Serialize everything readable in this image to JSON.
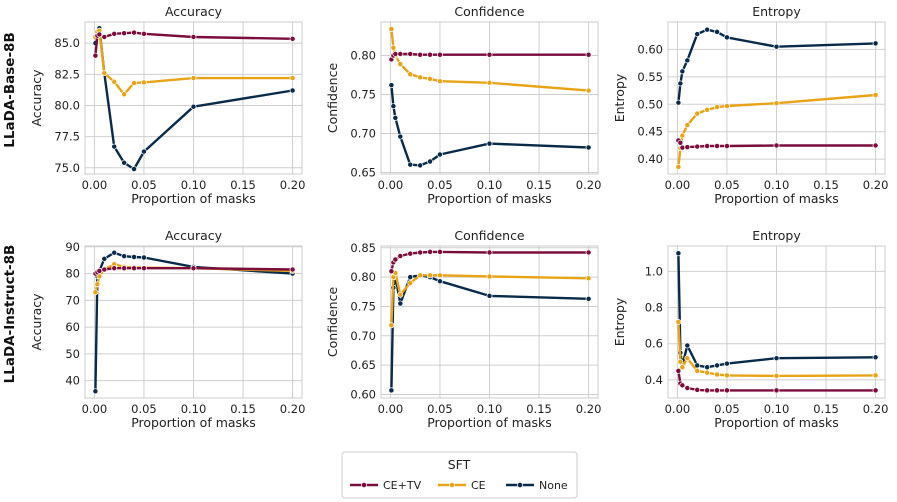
{
  "chart_data": [
    {
      "type": "line",
      "row": 0,
      "col": 0,
      "title": "Accuracy",
      "xlabel": "Proportion of masks",
      "ylabel": "Accuracy",
      "row_label": "LLaDA-Base-8B",
      "xlim": [
        -0.0095,
        0.2095
      ],
      "ylim": [
        74.5,
        86.7
      ],
      "xticks": [
        0.0,
        0.05,
        0.1,
        0.15,
        0.2
      ],
      "xtick_labels": [
        "0.00",
        "0.05",
        "0.10",
        "0.15",
        "0.20"
      ],
      "yticks": [
        75.0,
        77.5,
        80.0,
        82.5,
        85.0
      ],
      "ytick_labels": [
        "75.0",
        "77.5",
        "80.0",
        "82.5",
        "85.0"
      ],
      "series": [
        {
          "name": "CE+TV",
          "x": [
            0.001,
            0.003,
            0.005,
            0.01,
            0.02,
            0.03,
            0.04,
            0.05,
            0.1,
            0.2
          ],
          "y": [
            84.0,
            85.6,
            85.7,
            85.5,
            85.75,
            85.8,
            85.85,
            85.75,
            85.5,
            85.35
          ]
        },
        {
          "name": "CE",
          "x": [
            0.001,
            0.003,
            0.005,
            0.01,
            0.02,
            0.03,
            0.04,
            0.05,
            0.1,
            0.2
          ],
          "y": [
            85.5,
            85.9,
            86.0,
            82.6,
            81.9,
            80.9,
            81.8,
            81.85,
            82.2,
            82.2
          ]
        },
        {
          "name": "None",
          "x": [
            0.001,
            0.003,
            0.005,
            0.01,
            0.02,
            0.03,
            0.04,
            0.05,
            0.1,
            0.2
          ],
          "y": [
            85.0,
            85.9,
            86.2,
            82.6,
            76.7,
            75.4,
            74.9,
            76.3,
            79.9,
            81.2
          ]
        }
      ]
    },
    {
      "type": "line",
      "row": 0,
      "col": 1,
      "title": "Confidence",
      "xlabel": "Proportion of masks",
      "ylabel": "Confidence",
      "xlim": [
        -0.0095,
        0.2095
      ],
      "ylim": [
        0.648,
        0.843
      ],
      "xticks": [
        0.0,
        0.05,
        0.1,
        0.15,
        0.2
      ],
      "xtick_labels": [
        "0.00",
        "0.05",
        "0.10",
        "0.15",
        "0.20"
      ],
      "yticks": [
        0.65,
        0.7,
        0.75,
        0.8
      ],
      "ytick_labels": [
        "0.65",
        "0.70",
        "0.75",
        "0.80"
      ],
      "series": [
        {
          "name": "CE+TV",
          "x": [
            0.001,
            0.003,
            0.005,
            0.01,
            0.02,
            0.03,
            0.04,
            0.05,
            0.1,
            0.2
          ],
          "y": [
            0.795,
            0.8,
            0.802,
            0.802,
            0.802,
            0.801,
            0.801,
            0.801,
            0.801,
            0.801
          ]
        },
        {
          "name": "CE",
          "x": [
            0.001,
            0.003,
            0.005,
            0.01,
            0.02,
            0.03,
            0.04,
            0.05,
            0.1,
            0.2
          ],
          "y": [
            0.834,
            0.81,
            0.8,
            0.789,
            0.776,
            0.772,
            0.77,
            0.767,
            0.765,
            0.755
          ]
        },
        {
          "name": "None",
          "x": [
            0.001,
            0.003,
            0.005,
            0.01,
            0.02,
            0.03,
            0.04,
            0.05,
            0.1,
            0.2
          ],
          "y": [
            0.762,
            0.735,
            0.72,
            0.696,
            0.66,
            0.659,
            0.664,
            0.673,
            0.687,
            0.682
          ]
        }
      ]
    },
    {
      "type": "line",
      "row": 0,
      "col": 2,
      "title": "Entropy",
      "xlabel": "Proportion of masks",
      "ylabel": "Entropy",
      "xlim": [
        -0.0095,
        0.2095
      ],
      "ylim": [
        0.373,
        0.65
      ],
      "xticks": [
        0.0,
        0.05,
        0.1,
        0.15,
        0.2
      ],
      "xtick_labels": [
        "0.00",
        "0.05",
        "0.10",
        "0.15",
        "0.20"
      ],
      "yticks": [
        0.4,
        0.45,
        0.5,
        0.55,
        0.6
      ],
      "ytick_labels": [
        "0.40",
        "0.45",
        "0.50",
        "0.55",
        "0.60"
      ],
      "series": [
        {
          "name": "CE+TV",
          "x": [
            0.001,
            0.003,
            0.005,
            0.01,
            0.02,
            0.03,
            0.04,
            0.05,
            0.1,
            0.2
          ],
          "y": [
            0.434,
            0.43,
            0.421,
            0.422,
            0.423,
            0.424,
            0.424,
            0.424,
            0.425,
            0.425
          ]
        },
        {
          "name": "CE",
          "x": [
            0.001,
            0.003,
            0.005,
            0.01,
            0.02,
            0.03,
            0.04,
            0.05,
            0.1,
            0.2
          ],
          "y": [
            0.386,
            0.42,
            0.443,
            0.462,
            0.483,
            0.49,
            0.495,
            0.497,
            0.502,
            0.517
          ]
        },
        {
          "name": "None",
          "x": [
            0.001,
            0.003,
            0.005,
            0.01,
            0.02,
            0.03,
            0.04,
            0.05,
            0.1,
            0.2
          ],
          "y": [
            0.503,
            0.538,
            0.56,
            0.58,
            0.628,
            0.636,
            0.632,
            0.622,
            0.605,
            0.611
          ]
        }
      ]
    },
    {
      "type": "line",
      "row": 1,
      "col": 0,
      "title": "Accuracy",
      "xlabel": "Proportion of masks",
      "ylabel": "Accuracy",
      "row_label": "LLaDA-Instruct-8B",
      "xlim": [
        -0.0095,
        0.2095
      ],
      "ylim": [
        33.5,
        90.3
      ],
      "xticks": [
        0.0,
        0.05,
        0.1,
        0.15,
        0.2
      ],
      "xtick_labels": [
        "0.00",
        "0.05",
        "0.10",
        "0.15",
        "0.20"
      ],
      "yticks": [
        40,
        50,
        60,
        70,
        80,
        90
      ],
      "ytick_labels": [
        "40",
        "50",
        "60",
        "70",
        "80",
        "90"
      ],
      "series": [
        {
          "name": "CE+TV",
          "x": [
            0.001,
            0.003,
            0.005,
            0.01,
            0.02,
            0.03,
            0.04,
            0.05,
            0.1,
            0.2
          ],
          "y": [
            80.0,
            80.5,
            81.0,
            81.5,
            82.0,
            82.0,
            82.0,
            82.0,
            82.0,
            81.5
          ]
        },
        {
          "name": "CE",
          "x": [
            0.001,
            0.003,
            0.005,
            0.01,
            0.02,
            0.03,
            0.04,
            0.05,
            0.1,
            0.2
          ],
          "y": [
            73.0,
            76.0,
            79.0,
            81.5,
            83.5,
            82.5,
            82.3,
            82.2,
            82.0,
            81.0
          ]
        },
        {
          "name": "None",
          "x": [
            0.001,
            0.003,
            0.005,
            0.01,
            0.02,
            0.03,
            0.04,
            0.05,
            0.1,
            0.2
          ],
          "y": [
            36.0,
            79.0,
            81.0,
            85.5,
            87.8,
            86.5,
            86.2,
            86.0,
            82.5,
            80.0
          ]
        }
      ]
    },
    {
      "type": "line",
      "row": 1,
      "col": 1,
      "title": "Confidence",
      "xlabel": "Proportion of masks",
      "ylabel": "Confidence",
      "xlim": [
        -0.0095,
        0.2095
      ],
      "ylim": [
        0.594,
        0.853
      ],
      "xticks": [
        0.0,
        0.05,
        0.1,
        0.15,
        0.2
      ],
      "xtick_labels": [
        "0.00",
        "0.05",
        "0.10",
        "0.15",
        "0.20"
      ],
      "yticks": [
        0.6,
        0.65,
        0.7,
        0.75,
        0.8,
        0.85
      ],
      "ytick_labels": [
        "0.60",
        "0.65",
        "0.70",
        "0.75",
        "0.80",
        "0.85"
      ],
      "series": [
        {
          "name": "CE+TV",
          "x": [
            0.001,
            0.003,
            0.005,
            0.01,
            0.02,
            0.03,
            0.04,
            0.05,
            0.1,
            0.2
          ],
          "y": [
            0.81,
            0.825,
            0.83,
            0.836,
            0.84,
            0.842,
            0.843,
            0.843,
            0.842,
            0.842
          ]
        },
        {
          "name": "CE",
          "x": [
            0.001,
            0.003,
            0.005,
            0.01,
            0.02,
            0.03,
            0.04,
            0.05,
            0.1,
            0.2
          ],
          "y": [
            0.718,
            0.8,
            0.807,
            0.77,
            0.79,
            0.803,
            0.803,
            0.803,
            0.801,
            0.798
          ]
        },
        {
          "name": "None",
          "x": [
            0.001,
            0.003,
            0.005,
            0.01,
            0.02,
            0.03,
            0.04,
            0.05,
            0.1,
            0.2
          ],
          "y": [
            0.607,
            0.782,
            0.8,
            0.755,
            0.8,
            0.803,
            0.8,
            0.793,
            0.768,
            0.763
          ]
        }
      ]
    },
    {
      "type": "line",
      "row": 1,
      "col": 2,
      "title": "Entropy",
      "xlabel": "Proportion of masks",
      "ylabel": "Entropy",
      "xlim": [
        -0.0095,
        0.2095
      ],
      "ylim": [
        0.3,
        1.14
      ],
      "xticks": [
        0.0,
        0.05,
        0.1,
        0.15,
        0.2
      ],
      "xtick_labels": [
        "0.00",
        "0.05",
        "0.10",
        "0.15",
        "0.20"
      ],
      "yticks": [
        0.4,
        0.6,
        0.8,
        1.0
      ],
      "ytick_labels": [
        "0.4",
        "0.6",
        "0.8",
        "1.0"
      ],
      "series": [
        {
          "name": "CE+TV",
          "x": [
            0.001,
            0.003,
            0.005,
            0.01,
            0.02,
            0.03,
            0.04,
            0.05,
            0.1,
            0.2
          ],
          "y": [
            0.45,
            0.38,
            0.37,
            0.355,
            0.345,
            0.342,
            0.342,
            0.342,
            0.342,
            0.342
          ]
        },
        {
          "name": "CE",
          "x": [
            0.001,
            0.003,
            0.005,
            0.01,
            0.02,
            0.03,
            0.04,
            0.05,
            0.1,
            0.2
          ],
          "y": [
            0.72,
            0.5,
            0.47,
            0.52,
            0.45,
            0.44,
            0.43,
            0.425,
            0.422,
            0.425
          ]
        },
        {
          "name": "None",
          "x": [
            0.001,
            0.003,
            0.005,
            0.01,
            0.02,
            0.03,
            0.04,
            0.05,
            0.1,
            0.2
          ],
          "y": [
            1.1,
            0.55,
            0.48,
            0.59,
            0.48,
            0.47,
            0.48,
            0.49,
            0.52,
            0.525
          ]
        }
      ]
    }
  ],
  "legend": {
    "title": "SFT",
    "entries": [
      {
        "name": "CE+TV",
        "color": "#7b0d3c"
      },
      {
        "name": "CE",
        "color": "#e8a317"
      },
      {
        "name": "None",
        "color": "#0a2a4a"
      }
    ]
  },
  "colors": {
    "CE+TV": "#7b0d3c",
    "CE": "#e8a317",
    "None": "#0a2a4a",
    "grid": "#cfcfcf",
    "spine": "#cccccc"
  }
}
